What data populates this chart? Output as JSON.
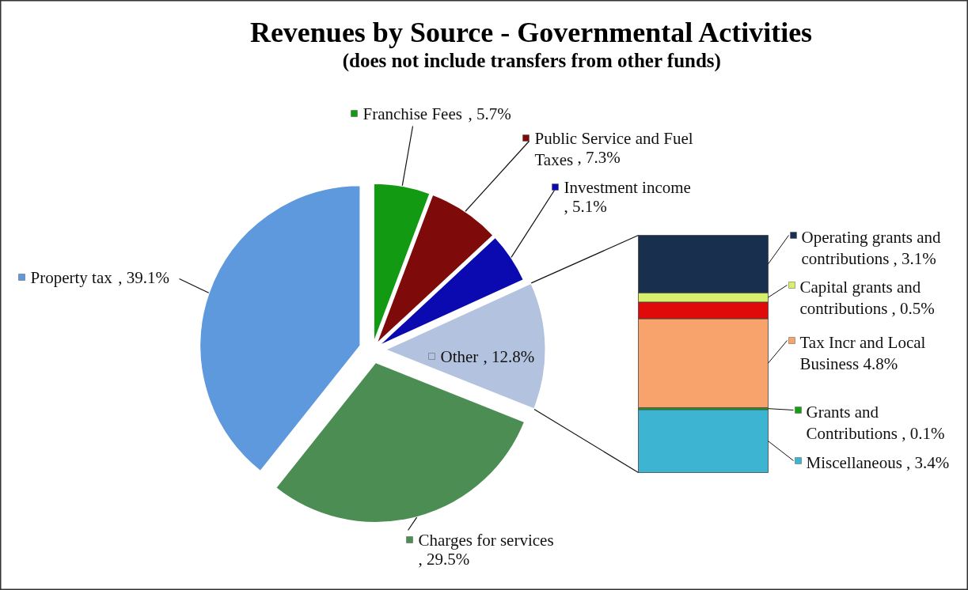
{
  "chart_data": [
    {
      "type": "pie",
      "title": "Revenues by Source - Governmental Activities",
      "subtitle": "(does not include transfers from other funds)",
      "categories": [
        "Franchise Fees",
        "Public Service and Fuel Taxes",
        "Investment income",
        "Other",
        "Charges for services",
        "Property tax"
      ],
      "values": [
        5.7,
        7.3,
        5.1,
        12.8,
        29.5,
        39.1
      ],
      "value_labels": [
        ", 5.7%",
        ", 7.3%",
        ", 5.1%",
        ", 12.8%",
        ", 29.5%",
        ", 39.1%"
      ],
      "colors": [
        "#139a13",
        "#7f0a0a",
        "#0a0ab0",
        "#b3c2df",
        "#4b8d52",
        "#5e98dd"
      ],
      "legend": "right"
    },
    {
      "type": "bar",
      "stacked": true,
      "categories": [
        null
      ],
      "series": [
        {
          "color": "#3db5d2",
          "values": [
            3.4
          ],
          "value_labels": [
            "Miscellaneous , 3.4%"
          ]
        },
        {
          "color": "#12a012",
          "values": [
            0.1
          ],
          "value_labels": [
            "Grants and Contributions , 0.1%"
          ]
        },
        {
          "color": "#f8a36c",
          "values": [
            4.8
          ],
          "value_labels": [
            "Tax Incr and Local Business 4.8%"
          ]
        },
        {
          "color": "#e00a0a",
          "values": [
            0.9
          ],
          "value_labels": [
            null
          ]
        },
        {
          "color": "#d6f06c",
          "values": [
            0.5
          ],
          "value_labels": [
            "Capital grants and contributions , 0.5%"
          ]
        },
        {
          "color": "#182f4e",
          "values": [
            3.1
          ],
          "value_labels": [
            "Operating grants and contributions , 3.1%"
          ]
        }
      ]
    }
  ]
}
